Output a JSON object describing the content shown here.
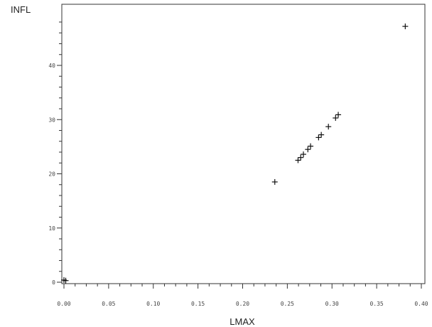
{
  "chart_data": {
    "type": "scatter",
    "title": "",
    "xlabel": "LMAX",
    "ylabel": "INFL",
    "marker": "plus",
    "xlim": [
      0,
      0.4
    ],
    "ylim": [
      0,
      48
    ],
    "x_ticks": [
      0.0,
      0.05,
      0.1,
      0.15,
      0.2,
      0.25,
      0.3,
      0.35,
      0.4
    ],
    "x_tick_labels": [
      "0.00",
      "0.05",
      "0.10",
      "0.15",
      "0.20",
      "0.25",
      "0.30",
      "0.35",
      "0.40"
    ],
    "y_ticks": [
      0,
      10,
      20,
      30,
      40
    ],
    "y_tick_labels": [
      "0",
      "10",
      "20",
      "30",
      "40"
    ],
    "grid": false,
    "points": [
      {
        "x": 0.0,
        "y": 0.4
      },
      {
        "x": 0.002,
        "y": 0.3
      },
      {
        "x": 0.236,
        "y": 18.5
      },
      {
        "x": 0.262,
        "y": 22.5
      },
      {
        "x": 0.265,
        "y": 23.0
      },
      {
        "x": 0.268,
        "y": 23.6
      },
      {
        "x": 0.273,
        "y": 24.5
      },
      {
        "x": 0.276,
        "y": 25.1
      },
      {
        "x": 0.285,
        "y": 26.7
      },
      {
        "x": 0.288,
        "y": 27.2
      },
      {
        "x": 0.296,
        "y": 28.7
      },
      {
        "x": 0.304,
        "y": 30.3
      },
      {
        "x": 0.307,
        "y": 30.9
      },
      {
        "x": 0.382,
        "y": 47.2
      }
    ]
  }
}
